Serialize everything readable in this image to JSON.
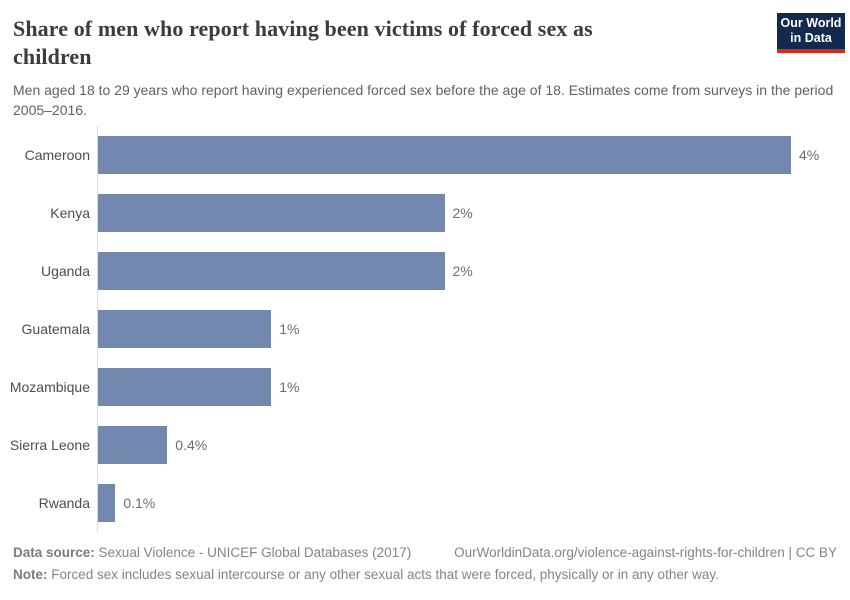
{
  "header": {
    "title": "Share of men who report having been victims of forced sex as children",
    "subtitle": "Men aged 18 to 29 years who report having experienced forced sex before the age of 18. Estimates come from surveys in the period 2005–2016.",
    "logo": {
      "line1": "Our World",
      "line2": "in Data"
    }
  },
  "chart_data": {
    "type": "bar",
    "orientation": "horizontal",
    "title": "Share of men who report having been victims of forced sex as children",
    "categories": [
      "Cameroon",
      "Kenya",
      "Uganda",
      "Guatemala",
      "Mozambique",
      "Sierra Leone",
      "Rwanda"
    ],
    "values": [
      4,
      2,
      2,
      1,
      1,
      0.4,
      0.1
    ],
    "value_labels": [
      "4%",
      "2%",
      "2%",
      "1%",
      "1%",
      "0.4%",
      "0.1%"
    ],
    "unit": "%",
    "xlim": [
      0,
      4
    ],
    "grid": false,
    "legend": "none",
    "bar_color": "#7288ae"
  },
  "footer": {
    "data_source_label": "Data source:",
    "data_source_text": "Sexual Violence - UNICEF Global Databases (2017)",
    "citation": "OurWorldinData.org/violence-against-rights-for-children | CC BY",
    "note_label": "Note:",
    "note_text": "Forced sex includes sexual intercourse or any other sexual acts that were forced, physically or in any other way."
  },
  "colors": {
    "bar": "#7288ae",
    "axis_line": "#dcdcdc",
    "logo_background": "#13294d",
    "logo_accent": "#d42a20",
    "title_text": "#3d3b3b",
    "subtitle_text": "#616161",
    "footer_text": "#848484"
  }
}
